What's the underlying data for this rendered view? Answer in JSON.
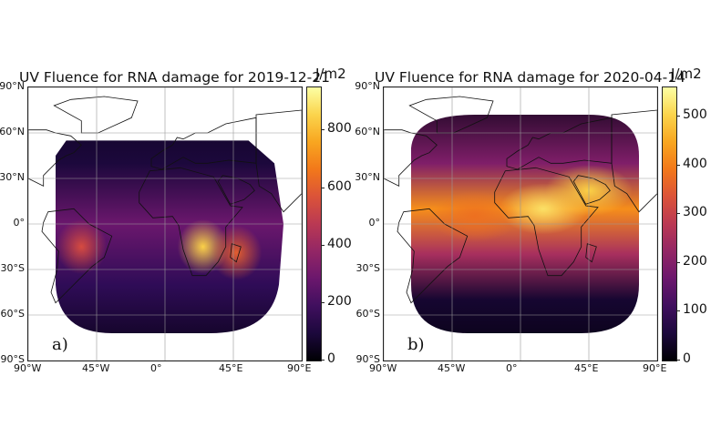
{
  "chart_data": [
    {
      "type": "heatmap",
      "panel_label": "a)",
      "title": "UV Fluence for RNA damage for 2019-12-21",
      "colorbar_unit": "J/m2",
      "colorbar_ticks": [
        0,
        200,
        400,
        600,
        800
      ],
      "vmin": 0,
      "vmax": 950,
      "colormap": "inferno",
      "xlim": [
        -90,
        90
      ],
      "ylim": [
        -90,
        90
      ],
      "x_ticks": [
        -90,
        -45,
        0,
        45,
        90
      ],
      "x_tick_labels": [
        "90°W",
        "45°W",
        "0°",
        "45°E",
        "90°E"
      ],
      "y_ticks": [
        90,
        60,
        30,
        0,
        -30,
        -60,
        -90
      ],
      "y_tick_labels": [
        "90°N",
        "60°N",
        "30°N",
        "0°",
        "30°S",
        "60°S",
        "90°S"
      ],
      "grid": true,
      "coverage_lat_range": [
        -72,
        55
      ],
      "hotspots": [
        {
          "region": "southern Africa",
          "lon": 25,
          "lat": -15,
          "value": 850
        },
        {
          "region": "central South America",
          "lon": -55,
          "lat": -15,
          "value": 550
        },
        {
          "region": "Madagascar",
          "lon": 47,
          "lat": -19,
          "value": 600
        }
      ]
    },
    {
      "type": "heatmap",
      "panel_label": "b)",
      "title": "UV Fluence for RNA damage for 2020-04-14",
      "colorbar_unit": "J/m2",
      "colorbar_ticks": [
        0,
        100,
        200,
        300,
        400,
        500
      ],
      "vmin": 0,
      "vmax": 560,
      "colormap": "inferno",
      "xlim": [
        -90,
        90
      ],
      "ylim": [
        -90,
        90
      ],
      "x_ticks": [
        -90,
        -45,
        0,
        45,
        90
      ],
      "x_tick_labels": [
        "90°W",
        "45°W",
        "0°",
        "45°E",
        "90°E"
      ],
      "y_ticks": [
        90,
        60,
        30,
        0,
        -30,
        -60,
        -90
      ],
      "y_tick_labels": [
        "90°N",
        "60°N",
        "30°N",
        "0°",
        "30°S",
        "60°S",
        "90°S"
      ],
      "grid": true,
      "coverage_lat_range": [
        -72,
        72
      ],
      "hotspots": [
        {
          "region": "northern Africa",
          "lon": 15,
          "lat": 10,
          "value": 520
        },
        {
          "region": "Arabian Peninsula",
          "lon": 45,
          "lat": 22,
          "value": 500
        },
        {
          "region": "tropical Atlantic",
          "lon": -30,
          "lat": 5,
          "value": 380
        }
      ]
    }
  ]
}
